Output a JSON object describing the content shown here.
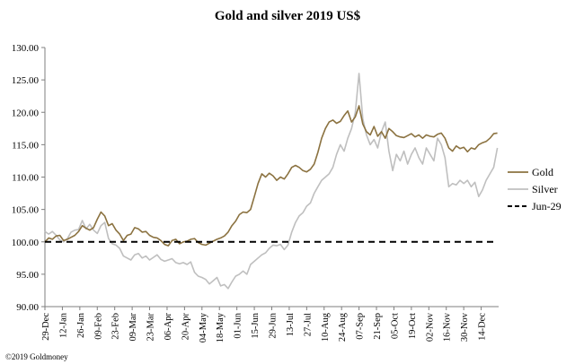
{
  "chart_data": {
    "type": "line",
    "title": "Gold and silver 2019  US$",
    "xlabel": "",
    "ylabel": "",
    "ylim": [
      90,
      130
    ],
    "yticks": [
      "90.00",
      "95.00",
      "100.00",
      "105.00",
      "110.00",
      "115.00",
      "120.00",
      "125.00",
      "130.00"
    ],
    "xticks": [
      "29-Dec",
      "12-Jan",
      "26-Jan",
      "09-Feb",
      "23-Feb",
      "09-Mar",
      "23-Mar",
      "06-Apr",
      "20-Apr",
      "04-May",
      "18-May",
      "01-Jun",
      "15-Jun",
      "29-Jun",
      "13-Jul",
      "27-Jul",
      "10-Aug",
      "24-Aug",
      "07-Sep",
      "21-Sep",
      "05-Oct",
      "19-Oct",
      "02-Nov",
      "16-Nov",
      "30-Nov",
      "14-Dec"
    ],
    "legend_position": "right",
    "grid": false,
    "series": [
      {
        "name": "Gold",
        "color": "#8B7240",
        "points": [
          [
            0,
            100.0
          ],
          [
            3,
            100.6
          ],
          [
            6,
            100.4
          ],
          [
            9,
            100.9
          ],
          [
            12,
            101.0
          ],
          [
            15,
            100.2
          ],
          [
            18,
            100.4
          ],
          [
            21,
            100.7
          ],
          [
            24,
            101.0
          ],
          [
            27,
            101.6
          ],
          [
            30,
            102.5
          ],
          [
            33,
            102.1
          ],
          [
            36,
            101.8
          ],
          [
            39,
            102.2
          ],
          [
            42,
            103.5
          ],
          [
            45,
            104.6
          ],
          [
            48,
            104.0
          ],
          [
            51,
            102.5
          ],
          [
            54,
            102.8
          ],
          [
            57,
            101.8
          ],
          [
            60,
            101.2
          ],
          [
            63,
            100.2
          ],
          [
            66,
            101.0
          ],
          [
            69,
            101.2
          ],
          [
            72,
            102.2
          ],
          [
            75,
            102.0
          ],
          [
            78,
            101.5
          ],
          [
            81,
            101.6
          ],
          [
            84,
            101.0
          ],
          [
            87,
            100.7
          ],
          [
            90,
            100.6
          ],
          [
            93,
            100.2
          ],
          [
            96,
            99.6
          ],
          [
            99,
            99.4
          ],
          [
            102,
            100.2
          ],
          [
            105,
            100.4
          ],
          [
            108,
            99.7
          ],
          [
            111,
            100.0
          ],
          [
            114,
            100.1
          ],
          [
            117,
            100.4
          ],
          [
            120,
            100.5
          ],
          [
            123,
            99.9
          ],
          [
            126,
            99.6
          ],
          [
            129,
            99.5
          ],
          [
            132,
            99.8
          ],
          [
            135,
            100.1
          ],
          [
            138,
            100.4
          ],
          [
            141,
            100.6
          ],
          [
            144,
            100.9
          ],
          [
            147,
            101.5
          ],
          [
            150,
            102.5
          ],
          [
            153,
            103.2
          ],
          [
            156,
            104.2
          ],
          [
            159,
            104.6
          ],
          [
            162,
            104.5
          ],
          [
            165,
            105.0
          ],
          [
            168,
            107.0
          ],
          [
            171,
            109.0
          ],
          [
            174,
            110.5
          ],
          [
            177,
            110.0
          ],
          [
            180,
            110.6
          ],
          [
            183,
            110.2
          ],
          [
            186,
            109.5
          ],
          [
            189,
            110.0
          ],
          [
            192,
            109.7
          ],
          [
            195,
            110.5
          ],
          [
            198,
            111.5
          ],
          [
            201,
            111.8
          ],
          [
            204,
            111.5
          ],
          [
            207,
            111.0
          ],
          [
            210,
            110.8
          ],
          [
            213,
            111.2
          ],
          [
            216,
            112.0
          ],
          [
            219,
            113.8
          ],
          [
            222,
            116.0
          ],
          [
            225,
            117.5
          ],
          [
            228,
            118.5
          ],
          [
            231,
            118.8
          ],
          [
            234,
            118.3
          ],
          [
            237,
            118.6
          ],
          [
            240,
            119.5
          ],
          [
            243,
            120.2
          ],
          [
            246,
            118.5
          ],
          [
            249,
            119.3
          ],
          [
            252,
            121.0
          ],
          [
            255,
            118.2
          ],
          [
            258,
            117.0
          ],
          [
            261,
            116.5
          ],
          [
            264,
            117.8
          ],
          [
            267,
            116.3
          ],
          [
            270,
            117.0
          ],
          [
            273,
            116.0
          ],
          [
            276,
            117.5
          ],
          [
            279,
            117.0
          ],
          [
            282,
            116.4
          ],
          [
            285,
            116.2
          ],
          [
            288,
            116.1
          ],
          [
            291,
            116.4
          ],
          [
            294,
            116.7
          ],
          [
            297,
            116.2
          ],
          [
            300,
            116.5
          ],
          [
            303,
            116.0
          ],
          [
            306,
            116.5
          ],
          [
            309,
            116.3
          ],
          [
            312,
            116.2
          ],
          [
            315,
            116.6
          ],
          [
            318,
            116.8
          ],
          [
            321,
            116.0
          ],
          [
            324,
            114.5
          ],
          [
            327,
            114.0
          ],
          [
            330,
            114.8
          ],
          [
            333,
            114.4
          ],
          [
            336,
            114.6
          ],
          [
            339,
            113.9
          ],
          [
            342,
            114.5
          ],
          [
            345,
            114.3
          ],
          [
            348,
            115.0
          ],
          [
            351,
            115.3
          ],
          [
            354,
            115.5
          ],
          [
            357,
            116.0
          ],
          [
            360,
            116.7
          ],
          [
            363,
            116.8
          ]
        ]
      },
      {
        "name": "Silver",
        "color": "#BFBFBF",
        "points": [
          [
            0,
            101.6
          ],
          [
            3,
            101.2
          ],
          [
            6,
            101.6
          ],
          [
            9,
            101.0
          ],
          [
            12,
            100.3
          ],
          [
            15,
            100.0
          ],
          [
            18,
            100.5
          ],
          [
            21,
            101.5
          ],
          [
            24,
            101.8
          ],
          [
            27,
            101.9
          ],
          [
            30,
            103.3
          ],
          [
            33,
            102.0
          ],
          [
            36,
            102.7
          ],
          [
            39,
            101.8
          ],
          [
            42,
            101.3
          ],
          [
            45,
            102.5
          ],
          [
            48,
            103.0
          ],
          [
            51,
            100.5
          ],
          [
            54,
            99.7
          ],
          [
            57,
            99.5
          ],
          [
            60,
            99.0
          ],
          [
            63,
            97.8
          ],
          [
            66,
            97.5
          ],
          [
            69,
            97.2
          ],
          [
            72,
            98.0
          ],
          [
            75,
            98.2
          ],
          [
            78,
            97.5
          ],
          [
            81,
            97.8
          ],
          [
            84,
            97.2
          ],
          [
            87,
            97.6
          ],
          [
            90,
            98.0
          ],
          [
            93,
            97.3
          ],
          [
            96,
            97.0
          ],
          [
            99,
            97.2
          ],
          [
            102,
            97.4
          ],
          [
            105,
            96.8
          ],
          [
            108,
            96.6
          ],
          [
            111,
            96.8
          ],
          [
            114,
            96.5
          ],
          [
            117,
            96.9
          ],
          [
            120,
            95.3
          ],
          [
            123,
            94.7
          ],
          [
            126,
            94.5
          ],
          [
            129,
            94.2
          ],
          [
            132,
            93.5
          ],
          [
            135,
            94.0
          ],
          [
            138,
            94.5
          ],
          [
            141,
            93.2
          ],
          [
            144,
            93.4
          ],
          [
            147,
            92.8
          ],
          [
            150,
            93.8
          ],
          [
            153,
            94.7
          ],
          [
            156,
            95.0
          ],
          [
            159,
            95.5
          ],
          [
            162,
            95.0
          ],
          [
            165,
            96.5
          ],
          [
            168,
            97.0
          ],
          [
            171,
            97.5
          ],
          [
            174,
            98.0
          ],
          [
            177,
            98.3
          ],
          [
            180,
            99.0
          ],
          [
            183,
            99.5
          ],
          [
            186,
            99.4
          ],
          [
            189,
            99.6
          ],
          [
            192,
            98.8
          ],
          [
            195,
            99.5
          ],
          [
            198,
            101.5
          ],
          [
            201,
            103.0
          ],
          [
            204,
            104.0
          ],
          [
            207,
            104.5
          ],
          [
            210,
            105.5
          ],
          [
            213,
            106.0
          ],
          [
            216,
            107.5
          ],
          [
            219,
            108.5
          ],
          [
            222,
            109.5
          ],
          [
            225,
            110.0
          ],
          [
            228,
            110.5
          ],
          [
            231,
            111.5
          ],
          [
            234,
            113.5
          ],
          [
            237,
            115.0
          ],
          [
            240,
            114.0
          ],
          [
            243,
            116.0
          ],
          [
            246,
            117.5
          ],
          [
            249,
            120.0
          ],
          [
            252,
            126.0
          ],
          [
            255,
            119.0
          ],
          [
            258,
            116.5
          ],
          [
            261,
            115.0
          ],
          [
            264,
            115.8
          ],
          [
            267,
            114.5
          ],
          [
            270,
            117.0
          ],
          [
            273,
            118.5
          ],
          [
            276,
            114.0
          ],
          [
            279,
            111.0
          ],
          [
            282,
            113.5
          ],
          [
            285,
            112.5
          ],
          [
            288,
            114.0
          ],
          [
            291,
            112.0
          ],
          [
            294,
            113.5
          ],
          [
            297,
            114.5
          ],
          [
            300,
            113.0
          ],
          [
            303,
            112.0
          ],
          [
            306,
            114.5
          ],
          [
            309,
            113.5
          ],
          [
            312,
            112.5
          ],
          [
            315,
            116.0
          ],
          [
            318,
            115.0
          ],
          [
            321,
            113.0
          ],
          [
            324,
            108.5
          ],
          [
            327,
            109.0
          ],
          [
            330,
            108.8
          ],
          [
            333,
            109.5
          ],
          [
            336,
            109.0
          ],
          [
            339,
            109.5
          ],
          [
            342,
            108.5
          ],
          [
            345,
            109.2
          ],
          [
            348,
            107.0
          ],
          [
            351,
            108.0
          ],
          [
            354,
            109.5
          ],
          [
            357,
            110.5
          ],
          [
            360,
            111.5
          ],
          [
            363,
            114.5
          ]
        ]
      },
      {
        "name": "Jun-29",
        "color": "#000000",
        "dashed": true,
        "points": [
          [
            0,
            100.0
          ],
          [
            363,
            100.0
          ]
        ]
      }
    ]
  },
  "footer": {
    "credit": "©2019 Goldmoney"
  }
}
